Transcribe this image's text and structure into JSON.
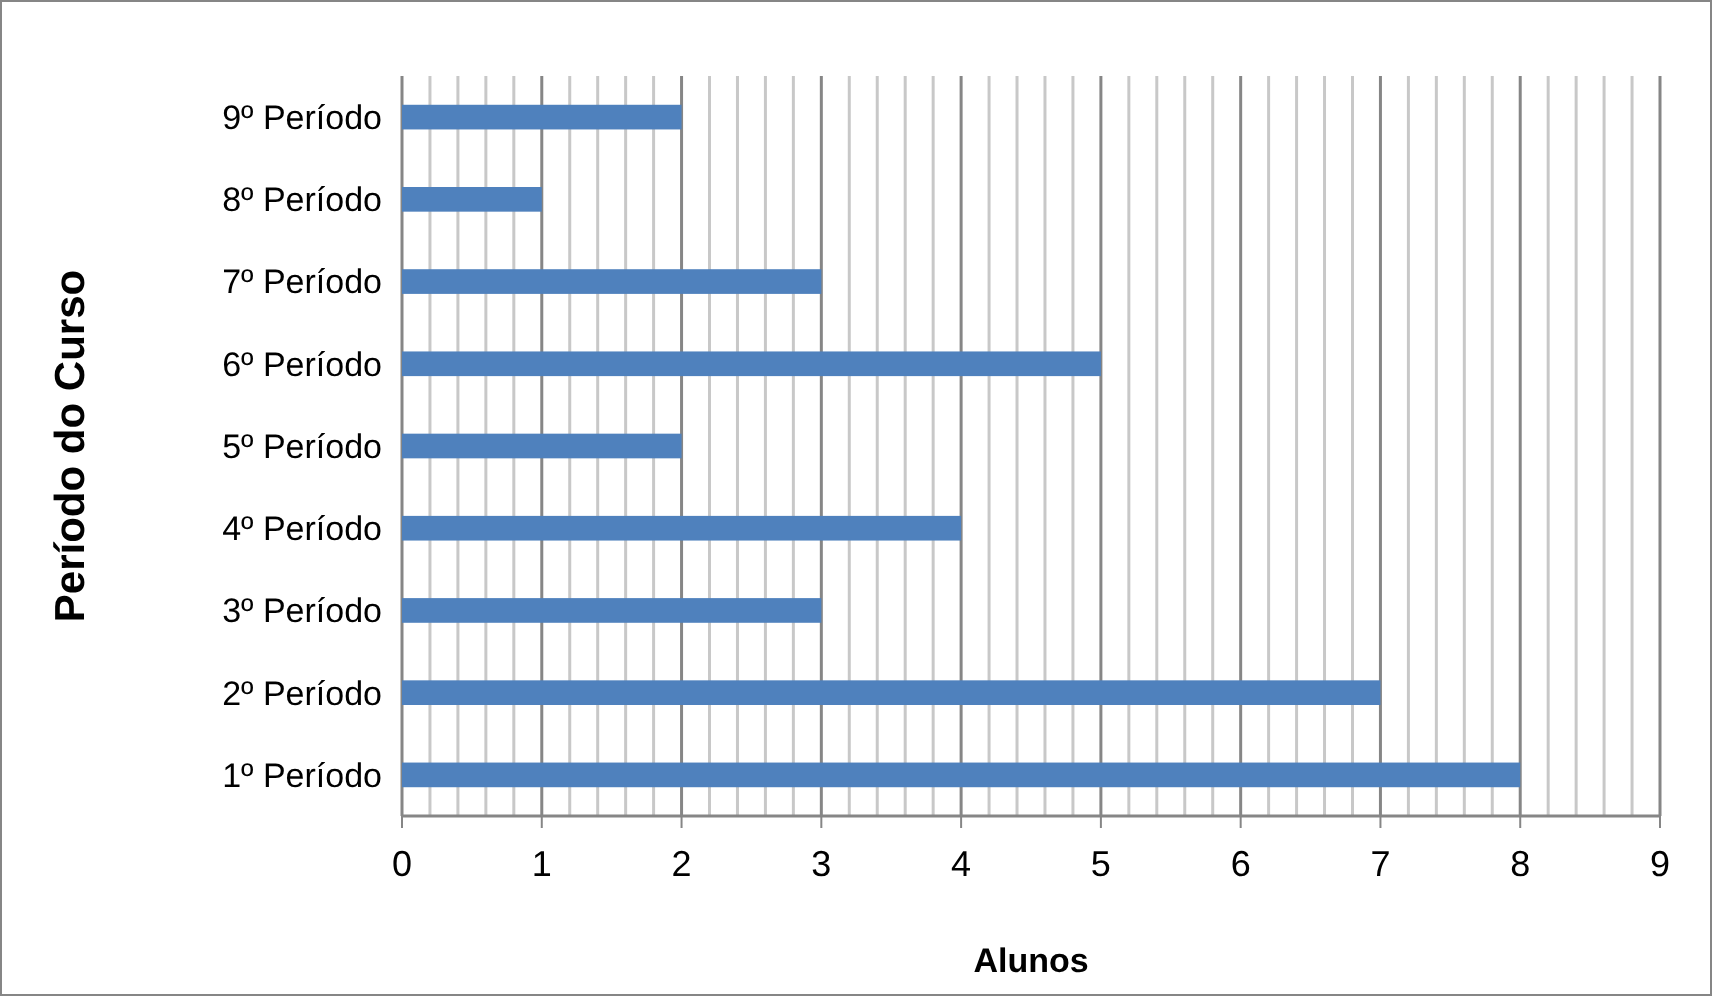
{
  "chart_data": {
    "type": "bar",
    "orientation": "horizontal",
    "xlabel": "Alunos",
    "ylabel": "Período do Curso",
    "categories": [
      "9º Período",
      "8º Período",
      "7º Período",
      "6º Período",
      "5º Período",
      "4º Período",
      "3º Período",
      "2º Período",
      "1º Período"
    ],
    "values": [
      2,
      1,
      3,
      5,
      2,
      4,
      3,
      7,
      8
    ],
    "color": "#4f81bd",
    "xlim": [
      0,
      9
    ],
    "xticks": [
      0,
      1,
      2,
      3,
      4,
      5,
      6,
      7,
      8,
      9
    ],
    "grid": "x"
  }
}
